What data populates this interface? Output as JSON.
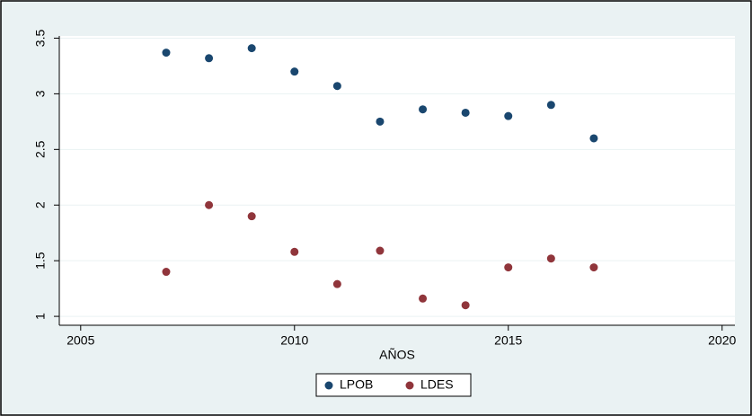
{
  "chart_data": {
    "type": "scatter",
    "x_label": "AÑOS",
    "x": [
      2007,
      2008,
      2009,
      2010,
      2011,
      2012,
      2013,
      2014,
      2015,
      2016,
      2017
    ],
    "series": [
      {
        "name": "LPOB",
        "color": "#1a476f",
        "values": [
          3.37,
          3.32,
          3.41,
          3.2,
          3.07,
          2.75,
          2.86,
          2.83,
          2.8,
          2.9,
          2.6
        ]
      },
      {
        "name": "LDES",
        "color": "#90353b",
        "values": [
          1.4,
          2.0,
          1.9,
          1.58,
          1.29,
          1.59,
          1.16,
          1.1,
          1.44,
          1.52,
          1.44
        ]
      }
    ],
    "xlim": [
      2004.5,
      2020.3
    ],
    "xticks": [
      2005,
      2010,
      2015,
      2020
    ],
    "ylim": [
      0.92,
      3.52
    ],
    "yticks": [
      1,
      1.5,
      2,
      2.5,
      3,
      3.5
    ],
    "grid": true
  }
}
